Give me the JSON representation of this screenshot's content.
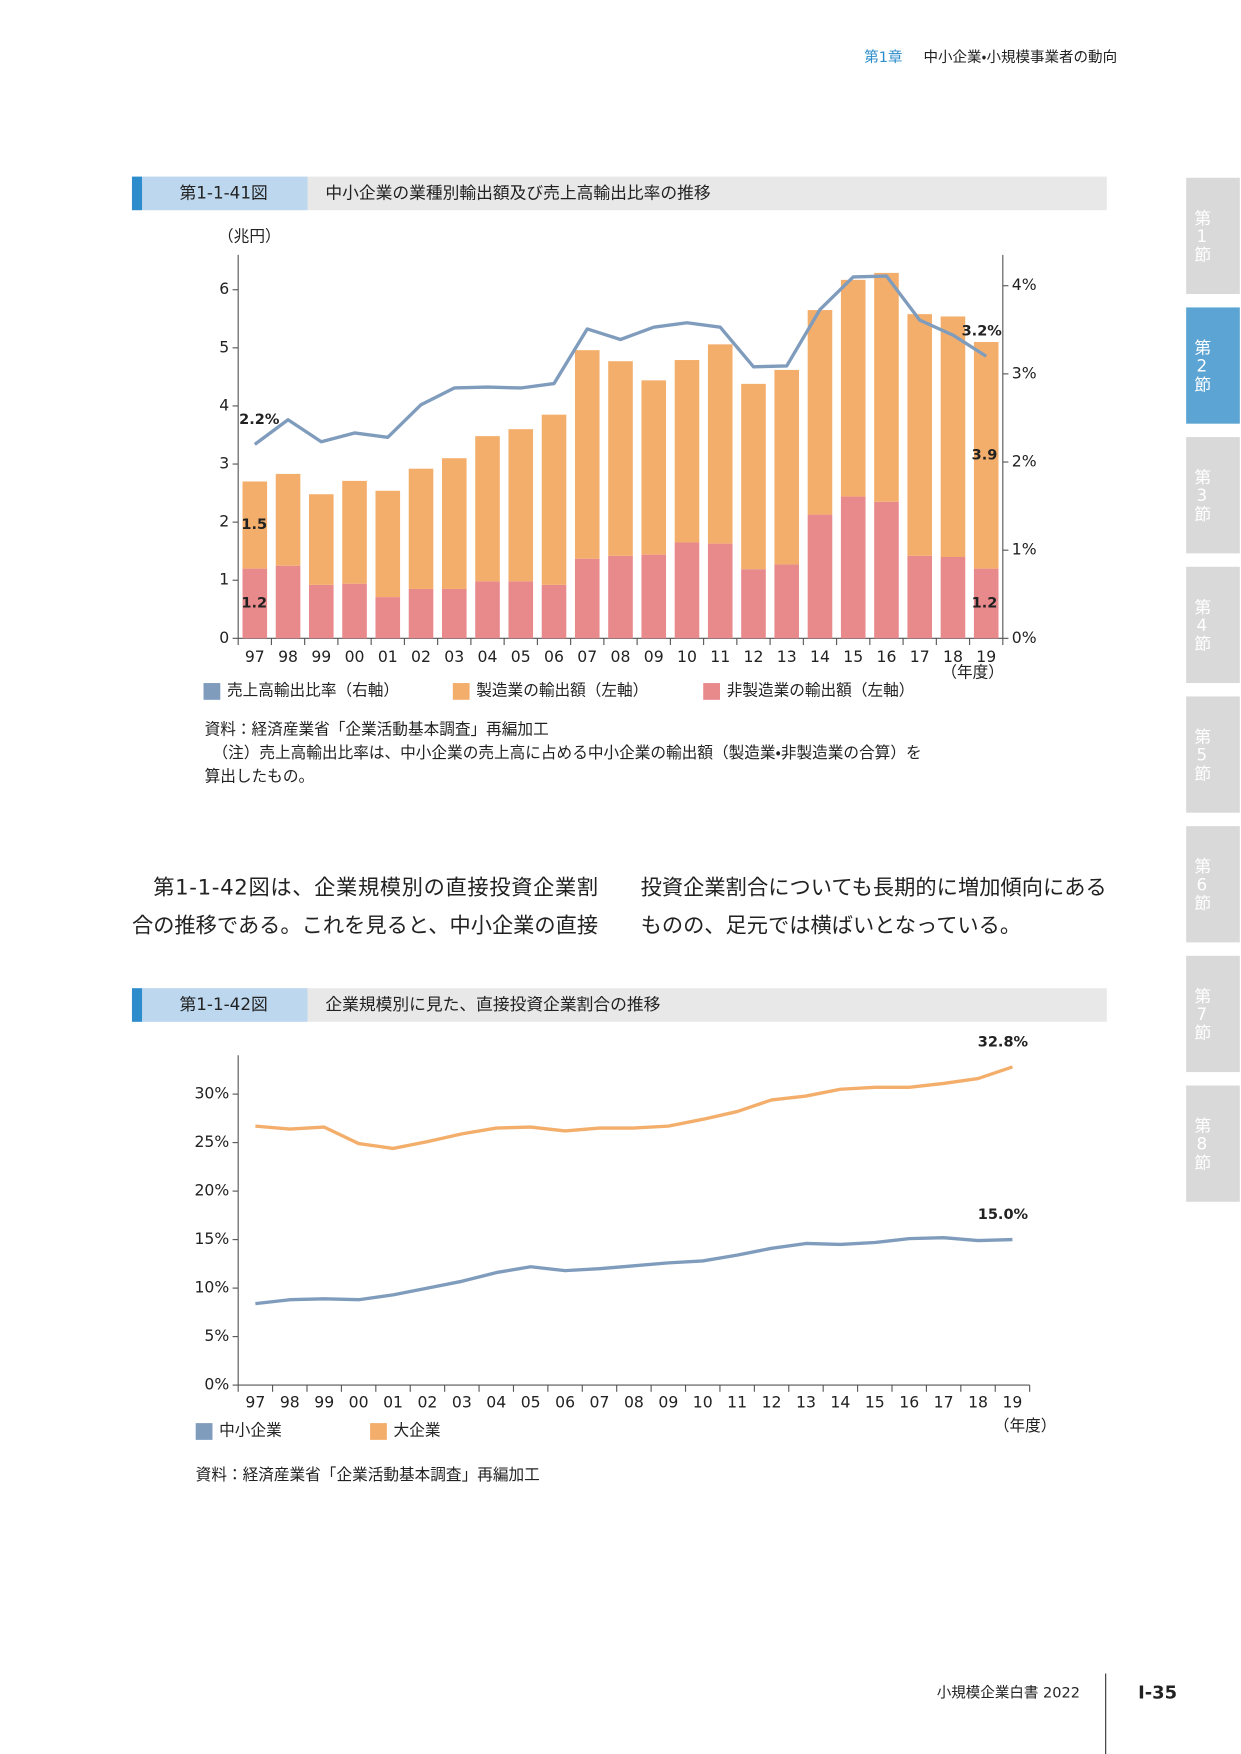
{
  "header": {
    "chapter": "第1章",
    "title": "中小企業・小規模事業者の動向"
  },
  "side_tabs": [
    {
      "label": "第1節",
      "active": false
    },
    {
      "label": "第2節",
      "active": true
    },
    {
      "label": "第3節",
      "active": false
    },
    {
      "label": "第4節",
      "active": false
    },
    {
      "label": "第5節",
      "active": false
    },
    {
      "label": "第6節",
      "active": false
    },
    {
      "label": "第7節",
      "active": false
    },
    {
      "label": "第8節",
      "active": false
    }
  ],
  "chart_data": [
    {
      "type": "bar",
      "stacked": true,
      "figure_number": "第1-1-41図",
      "title": "中小企業の業種別輸出額及び売上高輸出比率の推移",
      "y_label": "（兆円）",
      "x_label": "（年度）",
      "categories": [
        "97",
        "98",
        "99",
        "00",
        "01",
        "02",
        "03",
        "04",
        "05",
        "06",
        "07",
        "08",
        "09",
        "10",
        "11",
        "12",
        "13",
        "14",
        "15",
        "16",
        "17",
        "18",
        "19"
      ],
      "ylim": [
        0,
        6.6
      ],
      "yticks": [
        0,
        1,
        2,
        3,
        4,
        5,
        6
      ],
      "y2lim": [
        0,
        4.35
      ],
      "y2ticks": [
        {
          "value": 0,
          "label": "0%"
        },
        {
          "value": 1,
          "label": "1%"
        },
        {
          "value": 2,
          "label": "2%"
        },
        {
          "value": 3,
          "label": "3%"
        },
        {
          "value": 4,
          "label": "4%"
        }
      ],
      "series": [
        {
          "name": "非製造業の輸出額（左軸）",
          "color": "#e8898c",
          "values": [
            1.2,
            1.25,
            0.92,
            0.94,
            0.71,
            0.85,
            0.85,
            0.98,
            0.98,
            0.92,
            1.37,
            1.42,
            1.44,
            1.65,
            1.63,
            1.19,
            1.27,
            2.13,
            2.44,
            2.35,
            1.42,
            1.4,
            1.2
          ],
          "value_labels": [
            "1.2",
            null,
            null,
            null,
            null,
            null,
            null,
            null,
            null,
            null,
            null,
            null,
            null,
            null,
            null,
            null,
            null,
            null,
            null,
            null,
            null,
            null,
            "1.2"
          ]
        },
        {
          "name": "製造業の輸出額（左軸）",
          "color": "#f4ae6b",
          "values": [
            1.5,
            1.58,
            1.56,
            1.77,
            1.83,
            2.07,
            2.25,
            2.5,
            2.62,
            2.93,
            3.59,
            3.35,
            3.0,
            3.14,
            3.43,
            3.19,
            3.35,
            3.52,
            3.73,
            3.94,
            4.16,
            4.14,
            3.9
          ],
          "value_labels": [
            "1.5",
            null,
            null,
            null,
            null,
            null,
            null,
            null,
            null,
            null,
            null,
            null,
            null,
            null,
            null,
            null,
            null,
            null,
            null,
            null,
            null,
            null,
            "3.9"
          ]
        },
        {
          "name": "売上高輸出比率（右軸）",
          "type": "line",
          "axis": "y2",
          "color": "#7f9cbd",
          "values": [
            2.2,
            2.48,
            2.23,
            2.33,
            2.28,
            2.65,
            2.84,
            2.85,
            2.84,
            2.89,
            3.51,
            3.39,
            3.53,
            3.58,
            3.53,
            3.08,
            3.09,
            3.73,
            4.1,
            4.11,
            3.61,
            3.44,
            3.2
          ],
          "value_labels": [
            "2.2%",
            null,
            null,
            null,
            null,
            null,
            null,
            null,
            null,
            null,
            null,
            null,
            null,
            null,
            null,
            null,
            null,
            null,
            null,
            null,
            null,
            null,
            "3.2%"
          ]
        }
      ],
      "source": "資料：経済産業省「企業活動基本調査」再編加工",
      "note": [
        "（注）売上高輸出比率は、中小企業の売上高に占める中小企業の輸出額（製造業・非製造業の合算）を",
        "算出したもの。"
      ]
    },
    {
      "type": "line",
      "figure_number": "第1-1-42図",
      "title": "企業規模別に見た、直接投資企業割合の推移",
      "x_label": "（年度）",
      "categories": [
        "97",
        "98",
        "99",
        "00",
        "01",
        "02",
        "03",
        "04",
        "05",
        "06",
        "07",
        "08",
        "09",
        "10",
        "11",
        "12",
        "13",
        "14",
        "15",
        "16",
        "17",
        "18",
        "19"
      ],
      "ylim": [
        0,
        34
      ],
      "yticks": [
        {
          "value": 0,
          "label": "0%"
        },
        {
          "value": 5,
          "label": "5%"
        },
        {
          "value": 10,
          "label": "10%"
        },
        {
          "value": 15,
          "label": "15%"
        },
        {
          "value": 20,
          "label": "20%"
        },
        {
          "value": 25,
          "label": "25%"
        },
        {
          "value": 30,
          "label": "30%"
        }
      ],
      "series": [
        {
          "name": "中小企業",
          "color": "#7f9cbd",
          "values": [
            8.4,
            8.8,
            8.9,
            8.8,
            9.3,
            10.0,
            10.7,
            11.6,
            12.2,
            11.8,
            12.0,
            12.3,
            12.6,
            12.8,
            13.4,
            14.1,
            14.6,
            14.5,
            14.7,
            15.1,
            15.2,
            14.9,
            15.0
          ],
          "value_labels": [
            null,
            null,
            null,
            null,
            null,
            null,
            null,
            null,
            null,
            null,
            null,
            null,
            null,
            null,
            null,
            null,
            null,
            null,
            null,
            null,
            null,
            null,
            "15.0%"
          ]
        },
        {
          "name": "大企業",
          "color": "#f4ae6b",
          "values": [
            26.7,
            26.4,
            26.6,
            24.9,
            24.4,
            25.1,
            25.9,
            26.5,
            26.6,
            26.2,
            26.5,
            26.5,
            26.7,
            27.4,
            28.2,
            29.4,
            29.8,
            30.5,
            30.7,
            30.7,
            31.1,
            31.6,
            32.8
          ],
          "value_labels": [
            null,
            null,
            null,
            null,
            null,
            null,
            null,
            null,
            null,
            null,
            null,
            null,
            null,
            null,
            null,
            null,
            null,
            null,
            null,
            null,
            null,
            null,
            "32.8%"
          ]
        }
      ],
      "source": "資料：経済産業省「企業活動基本調査」再編加工"
    }
  ],
  "body_text": {
    "left": [
      "第1-1-42図は、企業規模別の直接投資企業割",
      "合の推移である。これを見ると、中小企業の直接"
    ],
    "right": [
      "投資企業割合についても長期的に増加傾向にある",
      "ものの、足元では横ばいとなっている。"
    ]
  },
  "footer": {
    "title": "小規模企業白書 2022",
    "page": "Ⅰ-35"
  }
}
